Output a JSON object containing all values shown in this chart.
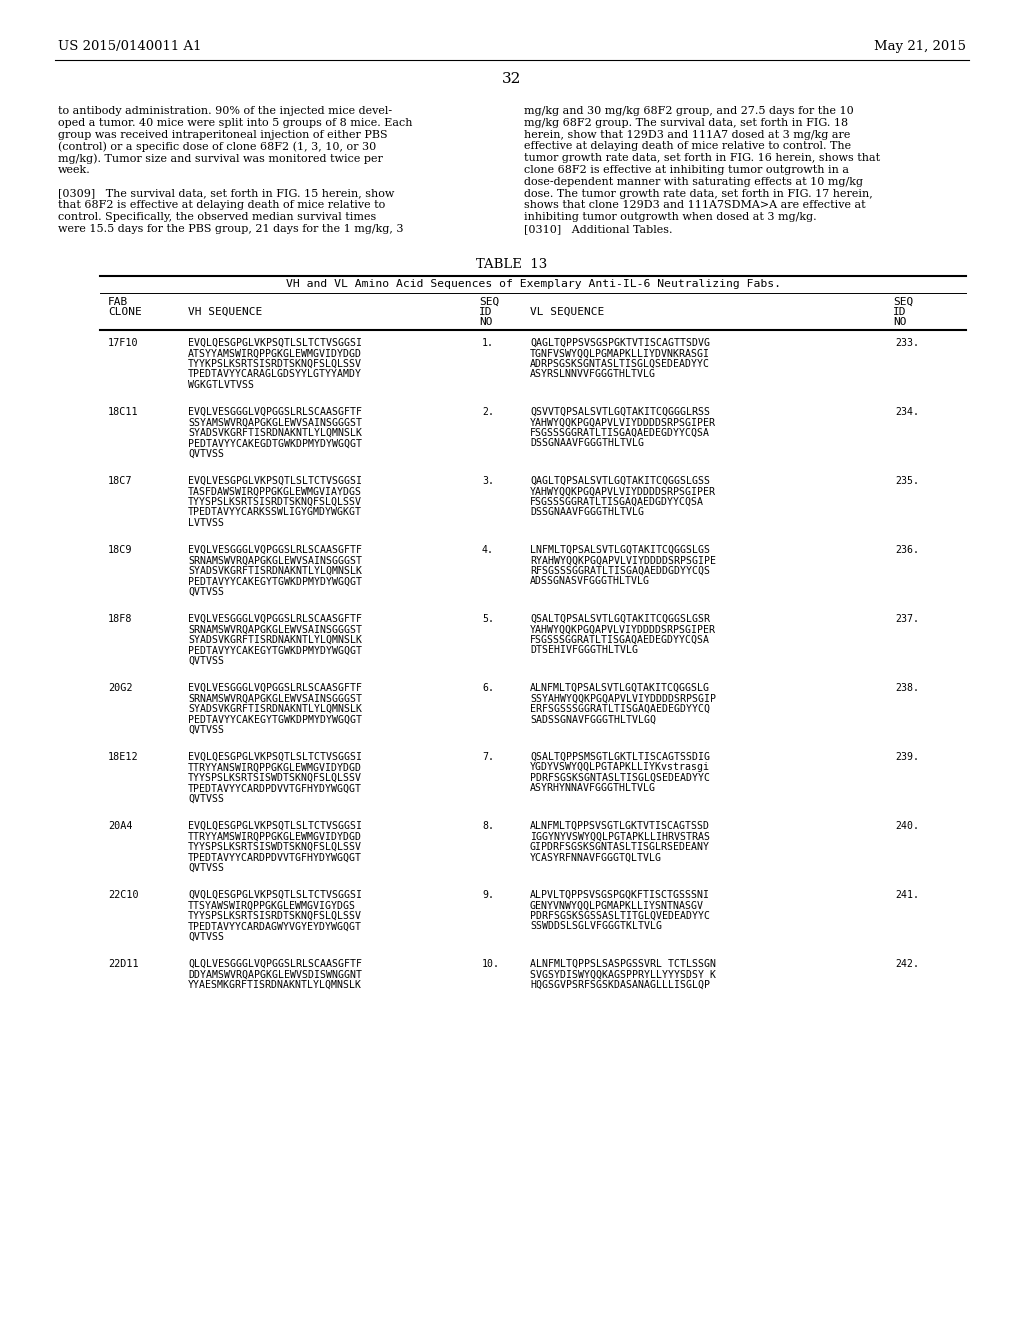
{
  "page_number": "32",
  "left_header": "US 2015/0140011 A1",
  "right_header": "May 21, 2015",
  "background_color": "#ffffff",
  "body_text_left": [
    "to antibody administration. 90% of the injected mice devel-",
    "oped a tumor. 40 mice were split into 5 groups of 8 mice. Each",
    "group was received intraperitoneal injection of either PBS",
    "(control) or a specific dose of clone 68F2 (1, 3, 10, or 30",
    "mg/kg). Tumor size and survival was monitored twice per",
    "week.",
    "",
    "[0309]   The survival data, set forth in FIG. 15 herein, show",
    "that 68F2 is effective at delaying death of mice relative to",
    "control. Specifically, the observed median survival times",
    "were 15.5 days for the PBS group, 21 days for the 1 mg/kg, 3"
  ],
  "body_text_right": [
    "mg/kg and 30 mg/kg 68F2 group, and 27.5 days for the 10",
    "mg/kg 68F2 group. The survival data, set forth in FIG. 18",
    "herein, show that 129D3 and 111A7 dosed at 3 mg/kg are",
    "effective at delaying death of mice relative to control. The",
    "tumor growth rate data, set forth in FIG. 16 herein, shows that",
    "clone 68F2 is effective at inhibiting tumor outgrowth in a",
    "dose-dependent manner with saturating effects at 10 mg/kg",
    "dose. The tumor growth rate data, set forth in FIG. 17 herein,",
    "shows that clone 129D3 and 111A7SDMA>A are effective at",
    "inhibiting tumor outgrowth when dosed at 3 mg/kg.",
    "[0310]   Additional Tables."
  ],
  "table_title": "TABLE  13",
  "table_subtitle": "VH and VL Amino Acid Sequences of Exemplary Anti-IL-6 Neutralizing Fabs.",
  "rows": [
    {
      "clone": "17F10",
      "vh": [
        "EVQLQESGPGLVKPSQTLSLTCTVSGGSI",
        "ATSYYAMSWIRQPPGKGLEWMGVIDYDGD",
        "TYYKPSLKSRTSISRDTSKNQFSLQLSSV",
        "TPEDTAVYYCARAGLGDSYYLGTYYAMDY",
        "WGKGTLVTVSS"
      ],
      "seq_vh": "1.",
      "vl": [
        "QAGLTQPPSVSGSPGKTVTISCAGTTSDVG",
        "TGNFVSWYQQLPGMAPKLLIYDVNKRASGI",
        "ADRPSGSKSGNTASLTISGLQSEDEADYYC",
        "ASYRSLNNVVFGGGTHLTVLG"
      ],
      "seq_vl": "233."
    },
    {
      "clone": "18C11",
      "vh": [
        "EVQLVESGGGLVQPGGSLRLSCAASGFTF",
        "SSYAMSWVRQAPGKGLEWVSAINSGGGST",
        "SYADSVKGRFTISRDNAKNTLYLQMNSLK",
        "PEDTAVYYCAKEGDTGWKDPMYDYWGQGT",
        "QVTVSS"
      ],
      "seq_vh": "2.",
      "vl": [
        "QSVVTQPSALSVTLGQTAKITCQGGGLRSS",
        "YAHWYQQKPGQAPVLVIYDDDDSRPSGIPER",
        "FSGSSSGGRATLTISGAQAEDEGDYYCQSA",
        "DSSGNAAVFGGGTHLTVLG"
      ],
      "seq_vl": "234."
    },
    {
      "clone": "18C7",
      "vh": [
        "EVQLVESGPGLVKPSQTLSLTCTVSGGSI",
        "TASFDAWSWIRQPPGKGLEWMGVIAYDGS",
        "TYYSPSLKSRTSISRDTSKNQFSLQLSSV",
        "TPEDTAVYYCARKSSWLIGYGMDYWGKGT",
        "LVTVSS"
      ],
      "seq_vh": "3.",
      "vl": [
        "QAGLTQPSALSVTLGQTAKITCQGGSLGSS",
        "YAHWYQQKPGQAPVLVIYDDDDSRPSGIPER",
        "FSGSSSGGRATLTISGAQAEDGDYYCQSA",
        "DSSGNAAVFGGGTHLTVLG"
      ],
      "seq_vl": "235."
    },
    {
      "clone": "18C9",
      "vh": [
        "EVQLVESGGGLVQPGGSLRLSCAASGFTF",
        "SRNAMSWVRQAPGKGLEWVSAINSGGGST",
        "SYADSVKGRFTISRDNAKNTLYLQMNSLK",
        "PEDTAVYYCAKEGYTGWKDPMYDYWGQGT",
        "QVTVSS"
      ],
      "seq_vh": "4.",
      "vl": [
        "LNFMLTQPSALSVTLGQTAKITCQGGSLGS",
        "RYAHWYQQKPGQAPVLVIYDDDDSRPSGIPE",
        "RFSGSSSGGRATLTISGAQAEDDGDYYCQS",
        "ADSSGNASVFGGGTHLTVLG"
      ],
      "seq_vl": "236."
    },
    {
      "clone": "18F8",
      "vh": [
        "EVQLVESGGGLVQPGGSLRLSCAASGFTF",
        "SRNAMSWVRQAPGKGLEWVSAINSGGGST",
        "SYADSVKGRFTISRDNAKNTLYLQMNSLK",
        "PEDTAVYYCAKEGYTGWKDPMYDYWGQGT",
        "QVTVSS"
      ],
      "seq_vh": "5.",
      "vl": [
        "QSALTQPSALSVTLGQTAKITCQGGSLGSR",
        "YAHWYQQKPGQAPVLVIYDDDDSRPSGIPER",
        "FSGSSSGGRATLTISGAQAEDEGDYYCQSA",
        "DTSEHIVFGGGTHLTVLG"
      ],
      "seq_vl": "237."
    },
    {
      "clone": "20G2",
      "vh": [
        "EVQLVESGGGLVQPGGSLRLSCAASGFTF",
        "SRNAMSWVRQAPGKGLEWVSAINSGGGST",
        "SYADSVKGRFTISRDNAKNTLYLQMNSLK",
        "PEDTAVYYCAKEGYTGWKDPMYDYWGQGT",
        "QVTVSS"
      ],
      "seq_vh": "6.",
      "vl": [
        "ALNFMLTQPSALSVTLGQTAKITCQGGSLG",
        "SSYAHWYQQKPGQAPVLVIYDDDDSRPSGIP",
        "ERFSGSSSGGRATLTISGAQAEDEGDYYCQ",
        "SADSSGNAVFGGGTHLTVLGQ"
      ],
      "seq_vl": "238."
    },
    {
      "clone": "18E12",
      "vh": [
        "EVQLQESGPGLVKPSQTLSLTCTVSGGSI",
        "TTRYYANSWIRQPPGKGLEWMGVIDYDGD",
        "TYYSPSLKSRTSISWDTSKNQFSLQLSSV",
        "TPEDTAVYYCARDPDVVTGFHYDYWGQGT",
        "QVTVSS"
      ],
      "seq_vh": "7.",
      "vl": [
        "QSALTQPPSMSGTLGKTLTISCAGTSSDIG",
        "YGDYVSWYQQLPGTAPKLLIYKvstrasgi",
        "PDRFSGSKSGNTASLTISGLQSEDEADYYC",
        "ASYRHYNNAVFGGGTHLTVLG"
      ],
      "seq_vl": "239."
    },
    {
      "clone": "20A4",
      "vh": [
        "EVQLQESGPGLVKPSQTLSLTCTVSGGSI",
        "TTRYYAMSWIRQPPGKGLEWMGVIDYDGD",
        "TYYSPSLKSRTSISWDTSKNQFSLQLSSV",
        "TPEDTAVYYCARDPDVVTGFHYDYWGQGT",
        "QVTVSS"
      ],
      "seq_vh": "8.",
      "vl": [
        "ALNFMLTQPPSVSGTLGKTVTISCAGTSSD",
        "IGGYNYVSWYQQLPGTAPKLLIHRVSTRAS",
        "GIPDRFSGSKSGNTASLTISGLRSEDEANY",
        "YCASYRFNNAVFGGGTQLTVLG"
      ],
      "seq_vl": "240."
    },
    {
      "clone": "22C10",
      "vh": [
        "QVQLQESGPGLVKPSQTLSLTCTVSGGSI",
        "TTSYAWSWIRQPPGKGLEWMGVIGYDGS",
        "TYYSPSLKSRTSISRDTSKNQFSLQLSSV",
        "TPEDTAVYYCARDAGWYVGYEYDYWGQGT",
        "QVTVSS"
      ],
      "seq_vh": "9.",
      "vl": [
        "ALPVLTQPPSVSGSPGQKFTISCTGSSSNI",
        "GENYVNWYQQLPGMAPKLLIYSNTNASGV",
        "PDRFSGSKSGSSASLTITGLQVEDEADYYC",
        "SSWDDSLSGLVFGGGTKLTVLG"
      ],
      "seq_vl": "241."
    },
    {
      "clone": "22D11",
      "vh": [
        "QLQLVESGGGLVQPGGSLRLSCAASGFTF",
        "DDYAMSWVRQAPGKGLEWVSDISWNGGNT",
        "YYAESMKGRFTISRDNAKNTLYLQMNSLK"
      ],
      "seq_vh": "10.",
      "vl": [
        "ALNFMLTQPPSLSASPGSSVRL TCTLSSGN",
        "SVGSYDISWYQQKAGSPPRYLLYYYSDSY K",
        "HQGSGVPSRFSGSKDASANAGLLLISGLQP"
      ],
      "seq_vl": "242."
    }
  ]
}
